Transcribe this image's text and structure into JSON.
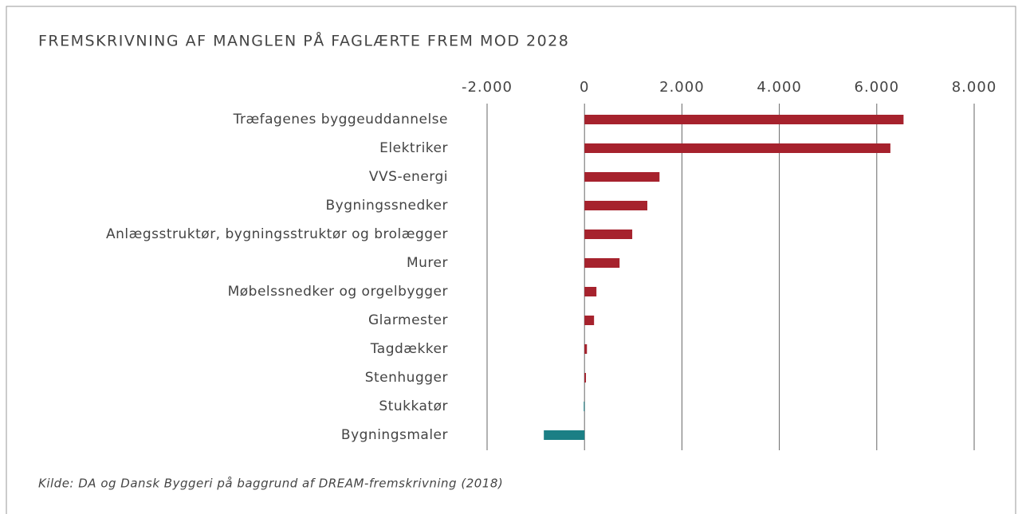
{
  "chart_data": {
    "type": "bar",
    "orientation": "horizontal",
    "title": "FREMSKRIVNING AF MANGLEN PÅ FAGLÆRTE FREM MOD 2028",
    "source": "Kilde: DA og Dansk Byggeri på baggrund af DREAM-fremskrivning (2018)",
    "categories": [
      "Træfagenes byggeuddannelse",
      "Elektriker",
      "VVS-energi",
      "Bygningssnedker",
      "Anlægsstruktør, bygningsstruktør og brolægger",
      "Murer",
      "Møbelssnedker og orgelbygger",
      "Glarmester",
      "Tagdækker",
      "Stenhugger",
      "Stukkatør",
      "Bygningsmaler"
    ],
    "values": [
      6550,
      6280,
      1540,
      1290,
      980,
      720,
      245,
      196,
      50,
      30,
      -15,
      -835
    ],
    "colors": [
      "#a6222d",
      "#a6222d",
      "#a6222d",
      "#a6222d",
      "#a6222d",
      "#a6222d",
      "#a6222d",
      "#a6222d",
      "#a6222d",
      "#a6222d",
      "#1b7f85",
      "#1b7f85"
    ],
    "xlim": [
      -2000,
      8000
    ],
    "xticks": [
      {
        "value": -2000,
        "label": "-2.000"
      },
      0,
      {
        "value": 2000,
        "label": "2.000"
      },
      {
        "value": 4000,
        "label": "4.000"
      },
      {
        "value": 6000,
        "label": "6.000"
      },
      {
        "value": 8000,
        "label": "8.000"
      }
    ],
    "grid": true
  }
}
